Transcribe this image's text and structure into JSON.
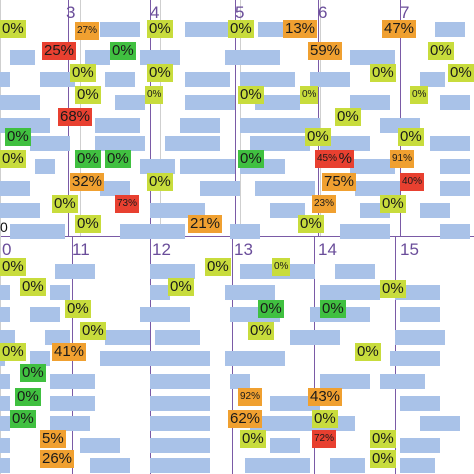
{
  "chart_data": {
    "type": "heatmap",
    "title": "",
    "panels": [
      {
        "days": [
          "3",
          "4",
          "5",
          "6",
          "7"
        ],
        "extra_labels": [
          "0"
        ],
        "cells": [
          {
            "label": "0%",
            "value": 0,
            "color": "#c8dc3c",
            "small": false
          },
          {
            "label": "27%",
            "value": 27,
            "color": "#f0a030",
            "small": true
          },
          {
            "label": "0%",
            "value": 0,
            "color": "#c8dc3c",
            "small": false
          },
          {
            "label": "0%",
            "value": 0,
            "color": "#c8dc3c",
            "small": false
          },
          {
            "label": "13%",
            "value": 13,
            "color": "#f0a030",
            "small": false
          },
          {
            "label": "47%",
            "value": 47,
            "color": "#f0a030",
            "small": false
          },
          {
            "label": "25%",
            "value": 25,
            "color": "#e84030",
            "small": false
          },
          {
            "label": "0%",
            "value": 0,
            "color": "#40c040",
            "small": false
          },
          {
            "label": "59%",
            "value": 59,
            "color": "#f0a030",
            "small": false
          },
          {
            "label": "0%",
            "value": 0,
            "color": "#c8dc3c",
            "small": false
          },
          {
            "label": "0%",
            "value": 0,
            "color": "#c8dc3c",
            "small": false
          },
          {
            "label": "0%",
            "value": 0,
            "color": "#c8dc3c",
            "small": false
          },
          {
            "label": "0%",
            "value": 0,
            "color": "#c8dc3c",
            "small": false
          },
          {
            "label": "0%",
            "value": 0,
            "color": "#c8dc3c",
            "small": false
          },
          {
            "label": "0%",
            "value": 0,
            "color": "#c8dc3c",
            "small": false
          },
          {
            "label": "0%",
            "value": 0,
            "color": "#c8dc3c",
            "small": true
          },
          {
            "label": "0%",
            "value": 0,
            "color": "#c8dc3c",
            "small": false
          },
          {
            "label": "0%",
            "value": 0,
            "color": "#c8dc3c",
            "small": true
          },
          {
            "label": "0%",
            "value": 0,
            "color": "#c8dc3c",
            "small": true
          },
          {
            "label": "68%",
            "value": 68,
            "color": "#e84030",
            "small": false
          },
          {
            "label": "0%",
            "value": 0,
            "color": "#40c040",
            "small": false
          },
          {
            "label": "0%",
            "value": 0,
            "color": "#c8dc3c",
            "small": false
          },
          {
            "label": "0%",
            "value": 0,
            "color": "#40c040",
            "small": false
          },
          {
            "label": "0%",
            "value": 0,
            "color": "#40c040",
            "small": false
          },
          {
            "label": "0%",
            "value": 0,
            "color": "#c8dc3c",
            "small": false
          },
          {
            "label": "0%",
            "value": 0,
            "color": "#c8dc3c",
            "small": false
          },
          {
            "label": "0%",
            "value": 0,
            "color": "#c8dc3c",
            "small": false
          },
          {
            "label": "0%",
            "value": 0,
            "color": "#40c040",
            "small": false
          },
          {
            "label": "81%",
            "value": 81,
            "color": "#e84030",
            "small": false
          },
          {
            "label": "45%",
            "value": 45,
            "color": "#e84030",
            "small": true
          },
          {
            "label": "91%",
            "value": 91,
            "color": "#f0a030",
            "small": true
          },
          {
            "label": "32%",
            "value": 32,
            "color": "#f0a030",
            "small": false
          },
          {
            "label": "0%",
            "value": 0,
            "color": "#c8dc3c",
            "small": false
          },
          {
            "label": "75%",
            "value": 75,
            "color": "#f0a030",
            "small": false
          },
          {
            "label": "40%",
            "value": 40,
            "color": "#e84030",
            "small": true
          },
          {
            "label": "0%",
            "value": 0,
            "color": "#c8dc3c",
            "small": false
          },
          {
            "label": "73%",
            "value": 73,
            "color": "#e84030",
            "small": true
          },
          {
            "label": "23%",
            "value": 23,
            "color": "#f0a030",
            "small": true
          },
          {
            "label": "0%",
            "value": 0,
            "color": "#c8dc3c",
            "small": false
          },
          {
            "label": "0%",
            "value": 0,
            "color": "#c8dc3c",
            "small": false
          },
          {
            "label": "21%",
            "value": 21,
            "color": "#f0a030",
            "small": false
          },
          {
            "label": "0%",
            "value": 0,
            "color": "#c8dc3c",
            "small": false
          }
        ]
      },
      {
        "days": [
          "0",
          "11",
          "12",
          "13",
          "14",
          "15"
        ],
        "cells": [
          {
            "label": "0%",
            "value": 0,
            "color": "#c8dc3c",
            "small": false
          },
          {
            "label": "0%",
            "value": 0,
            "color": "#c8dc3c",
            "small": true
          },
          {
            "label": "0%",
            "value": 0,
            "color": "#c8dc3c",
            "small": false
          },
          {
            "label": "0%",
            "value": 0,
            "color": "#c8dc3c",
            "small": false
          },
          {
            "label": "0%",
            "value": 0,
            "color": "#c8dc3c",
            "small": false
          },
          {
            "label": "0%",
            "value": 0,
            "color": "#c8dc3c",
            "small": false
          },
          {
            "label": "0%",
            "value": 0,
            "color": "#40c040",
            "small": false
          },
          {
            "label": "0%",
            "value": 0,
            "color": "#c8dc3c",
            "small": false
          },
          {
            "label": "0%",
            "value": 0,
            "color": "#c8dc3c",
            "small": false
          },
          {
            "label": "0%",
            "value": 0,
            "color": "#c8dc3c",
            "small": false
          },
          {
            "label": "0%",
            "value": 0,
            "color": "#40c040",
            "small": false
          },
          {
            "label": "0%",
            "value": 0,
            "color": "#c8dc3c",
            "small": false
          },
          {
            "label": "41%",
            "value": 41,
            "color": "#f0a030",
            "small": false
          },
          {
            "label": "0%",
            "value": 0,
            "color": "#c8dc3c",
            "small": false
          },
          {
            "label": "0%",
            "value": 0,
            "color": "#40c040",
            "small": false
          },
          {
            "label": "0%",
            "value": 0,
            "color": "#40c040",
            "small": false
          },
          {
            "label": "92%",
            "value": 92,
            "color": "#f0a030",
            "small": true
          },
          {
            "label": "43%",
            "value": 43,
            "color": "#f0a030",
            "small": false
          },
          {
            "label": "0%",
            "value": 0,
            "color": "#40c040",
            "small": false
          },
          {
            "label": "62%",
            "value": 62,
            "color": "#f0a030",
            "small": false
          },
          {
            "label": "0%",
            "value": 0,
            "color": "#c8dc3c",
            "small": false
          },
          {
            "label": "5%",
            "value": 5,
            "color": "#f0a030",
            "small": false
          },
          {
            "label": "0%",
            "value": 0,
            "color": "#c8dc3c",
            "small": false
          },
          {
            "label": "72%",
            "value": 72,
            "color": "#e84030",
            "small": true
          },
          {
            "label": "0%",
            "value": 0,
            "color": "#c8dc3c",
            "small": false
          },
          {
            "label": "26%",
            "value": 26,
            "color": "#f0a030",
            "small": false
          },
          {
            "label": "0%",
            "value": 0,
            "color": "#c8dc3c",
            "small": false
          }
        ]
      }
    ],
    "bar_color": "#a9c2e8",
    "line_color": "#7a5aa6"
  }
}
